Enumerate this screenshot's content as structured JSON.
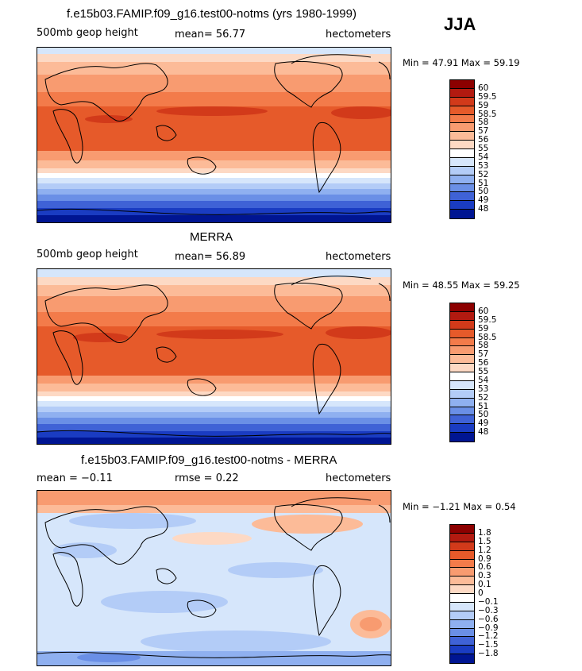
{
  "season": "JJA",
  "panels": [
    {
      "id": "model",
      "title": "f.e15b03.FAMIP.f09_g16.test00-notms (yrs 1980-1999)",
      "left": "500mb geop height",
      "center": "mean=   56.77",
      "right": "hectometers",
      "minmax": "Min =   47.91  Max =   59.19",
      "colorbar_labels": [
        "60",
        "59.5",
        "59",
        "58.5",
        "58",
        "57",
        "56",
        "55",
        "54",
        "53",
        "52",
        "51",
        "50",
        "49",
        "48"
      ],
      "colors": [
        "#8c0000",
        "#b21a10",
        "#d23a1a",
        "#e65a2a",
        "#f37b4a",
        "#f89b70",
        "#fcbb98",
        "#fdd9c4",
        "#ffffff",
        "#d6e6fb",
        "#b3ccf7",
        "#8fb0f0",
        "#6a8fe6",
        "#3f62d6",
        "#1a3cc2",
        "#001592"
      ]
    },
    {
      "id": "obs",
      "title": "MERRA",
      "left": "500mb geop height",
      "center": "mean=   56.89",
      "right": "hectometers",
      "minmax": "Min =   48.55  Max =   59.25",
      "colorbar_labels": [
        "60",
        "59.5",
        "59",
        "58.5",
        "58",
        "57",
        "56",
        "55",
        "54",
        "53",
        "52",
        "51",
        "50",
        "49",
        "48"
      ],
      "colors": [
        "#8c0000",
        "#b21a10",
        "#d23a1a",
        "#e65a2a",
        "#f37b4a",
        "#f89b70",
        "#fcbb98",
        "#fdd9c4",
        "#ffffff",
        "#d6e6fb",
        "#b3ccf7",
        "#8fb0f0",
        "#6a8fe6",
        "#3f62d6",
        "#1a3cc2",
        "#001592"
      ]
    },
    {
      "id": "diff",
      "title": "f.e15b03.FAMIP.f09_g16.test00-notms - MERRA",
      "left": "mean =   −0.11",
      "center": "rmse =     0.22",
      "right": "hectometers",
      "minmax": "Min =   −1.21  Max =     0.54",
      "colorbar_labels": [
        "1.8",
        "1.5",
        "1.2",
        "0.9",
        "0.6",
        "0.3",
        "0.1",
        "0",
        "−0.1",
        "−0.3",
        "−0.6",
        "−0.9",
        "−1.2",
        "−1.5",
        "−1.8"
      ],
      "colors": [
        "#8c0000",
        "#b21a10",
        "#d23a1a",
        "#e65a2a",
        "#f37b4a",
        "#f89b70",
        "#fcbb98",
        "#fdd9c4",
        "#ffffff",
        "#d6e6fb",
        "#b3ccf7",
        "#8fb0f0",
        "#6a8fe6",
        "#3f62d6",
        "#1a3cc2",
        "#001592"
      ]
    }
  ]
}
